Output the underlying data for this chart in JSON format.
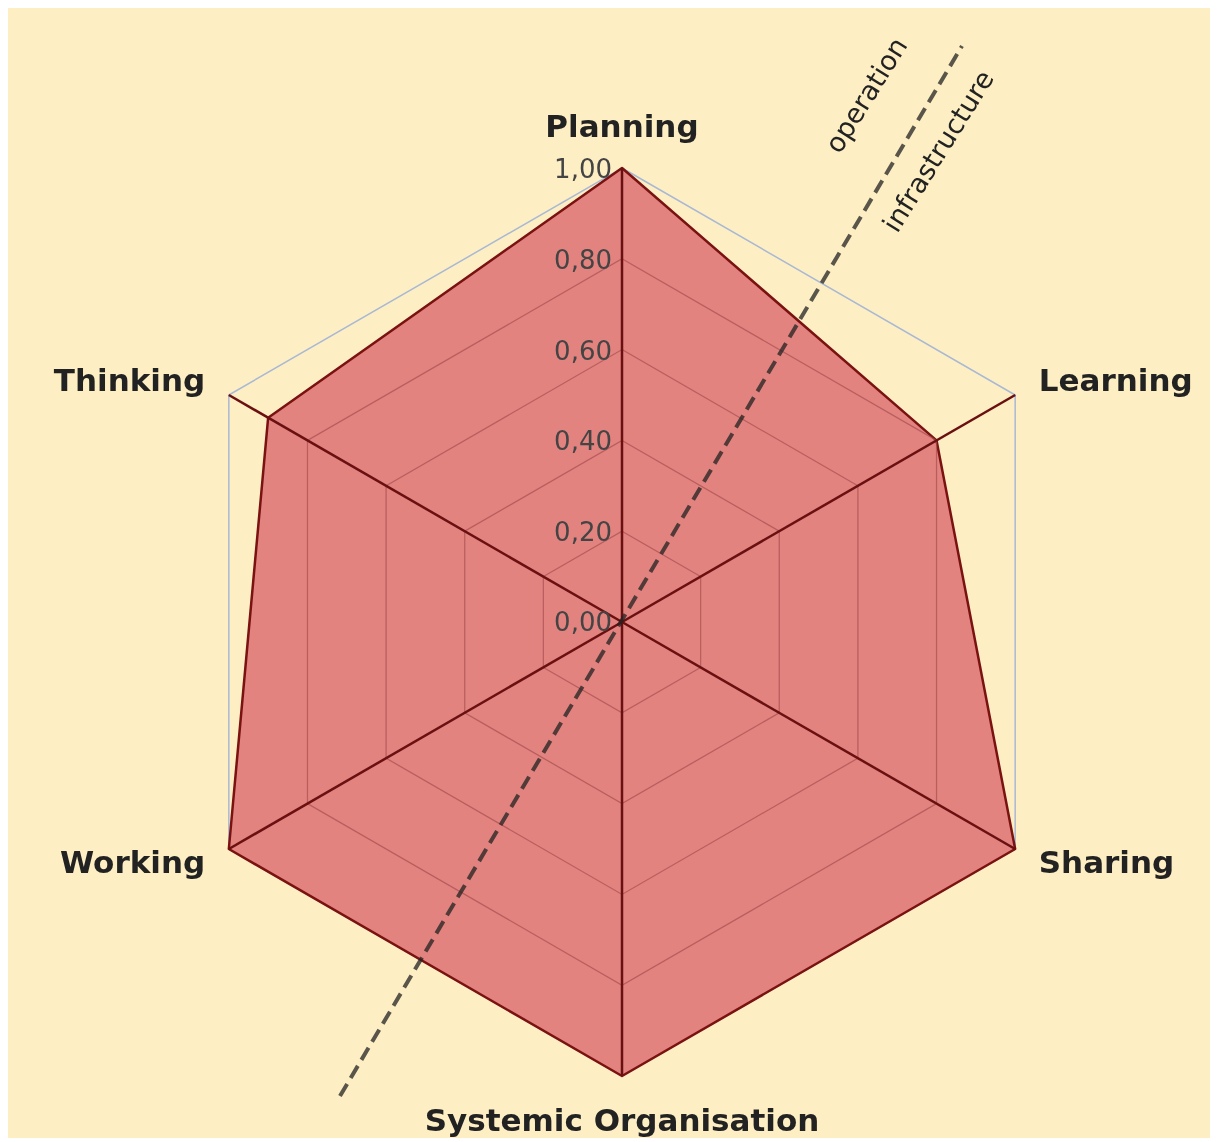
{
  "chart_data": {
    "type": "radar",
    "categories": [
      "Planning",
      "Learning",
      "Sharing",
      "Systemic Organisation",
      "Working",
      "Thinking"
    ],
    "series": [
      {
        "color": "#e07a7a",
        "values": [
          1.0,
          0.8,
          1.0,
          1.0,
          1.0,
          0.9
        ]
      }
    ],
    "ylim": [
      0,
      1
    ],
    "yticks": [
      {
        "value": 0,
        "label": "0,00"
      },
      {
        "value": 0.2,
        "label": "0,20"
      },
      {
        "value": 0.4,
        "label": "0,40"
      },
      {
        "value": 0.6,
        "label": "0,60"
      },
      {
        "value": 0.8,
        "label": "0,80"
      },
      {
        "value": 1,
        "label": "1,00"
      }
    ],
    "grid": true,
    "annotations": [
      "operation",
      "infrastructure"
    ]
  }
}
